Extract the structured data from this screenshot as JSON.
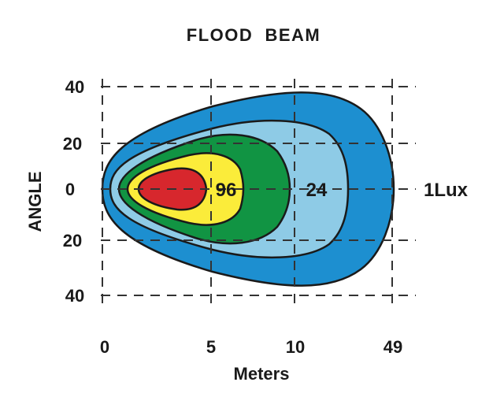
{
  "chart_data": {
    "type": "area",
    "title": "FLOOD  BEAM",
    "xlabel": "Meters",
    "ylabel": "ANGLE",
    "grid": true,
    "x_ticks": [
      "0",
      "5",
      "10",
      "49"
    ],
    "y_ticks": [
      "40",
      "20",
      "0",
      "20",
      "40"
    ],
    "zones": [
      {
        "label": "1Lux",
        "color": "#1d8fd0"
      },
      {
        "label": "",
        "color": "#8ecbe6"
      },
      {
        "label": "24",
        "color": "#119443"
      },
      {
        "label": "96",
        "color": "#fbec3a"
      },
      {
        "label": "",
        "color": "#d7272d"
      }
    ]
  }
}
